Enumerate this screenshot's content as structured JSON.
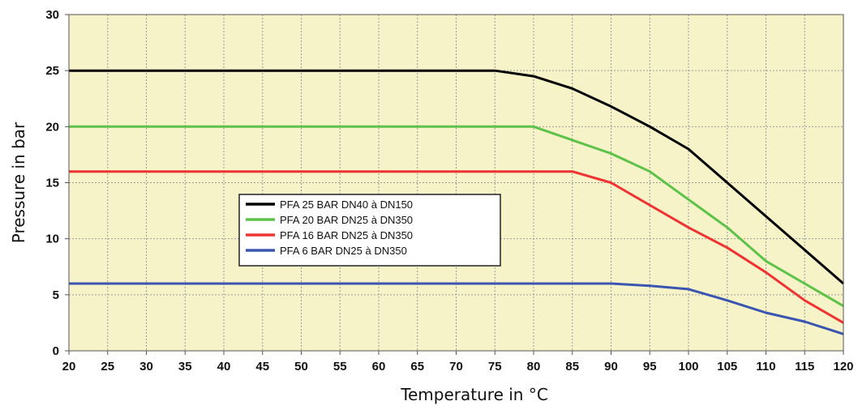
{
  "chart_data": {
    "type": "line",
    "xlabel": "Temperature in  °C",
    "ylabel": "Pressure in bar",
    "xlim": [
      20,
      120
    ],
    "ylim": [
      0,
      30
    ],
    "x_ticks": [
      20,
      25,
      30,
      35,
      40,
      45,
      50,
      55,
      60,
      65,
      70,
      75,
      80,
      85,
      90,
      95,
      100,
      105,
      110,
      115,
      120
    ],
    "y_ticks": [
      0,
      5,
      10,
      15,
      20,
      25,
      30
    ],
    "grid": true,
    "legend_position": "center-left",
    "background_color": "#f7f3c9",
    "series": [
      {
        "name": "PFA 25 BAR DN40 à DN150",
        "color": "#000000",
        "points": [
          [
            20,
            25
          ],
          [
            75,
            25
          ],
          [
            80,
            24.5
          ],
          [
            85,
            23.4
          ],
          [
            90,
            21.8
          ],
          [
            95,
            20
          ],
          [
            100,
            18
          ],
          [
            105,
            15
          ],
          [
            110,
            12
          ],
          [
            115,
            9
          ],
          [
            120,
            6
          ]
        ]
      },
      {
        "name": "PFA 20 BAR DN25 à DN350",
        "color": "#5cc24a",
        "points": [
          [
            20,
            20
          ],
          [
            80,
            20
          ],
          [
            85,
            18.8
          ],
          [
            90,
            17.6
          ],
          [
            95,
            16
          ],
          [
            100,
            13.5
          ],
          [
            105,
            11
          ],
          [
            110,
            8
          ],
          [
            115,
            6
          ],
          [
            120,
            4
          ]
        ]
      },
      {
        "name": "PFA 16 BAR DN25 à DN350",
        "color": "#ee3333",
        "points": [
          [
            20,
            16
          ],
          [
            85,
            16
          ],
          [
            90,
            15
          ],
          [
            95,
            13
          ],
          [
            100,
            11
          ],
          [
            105,
            9.2
          ],
          [
            110,
            7
          ],
          [
            115,
            4.5
          ],
          [
            120,
            2.5
          ]
        ]
      },
      {
        "name": "PFA 6 BAR DN25 à DN350",
        "color": "#3a55b0",
        "points": [
          [
            20,
            6
          ],
          [
            90,
            6
          ],
          [
            95,
            5.8
          ],
          [
            100,
            5.5
          ],
          [
            105,
            4.5
          ],
          [
            110,
            3.4
          ],
          [
            115,
            2.6
          ],
          [
            120,
            1.5
          ]
        ]
      }
    ]
  }
}
